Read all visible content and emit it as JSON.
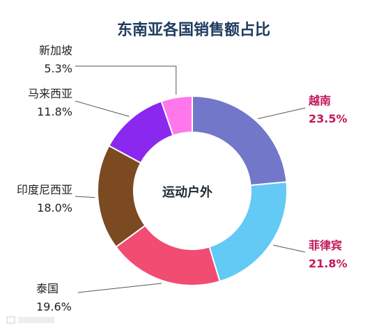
{
  "chart_data": {
    "type": "pie",
    "variant": "donut",
    "title": "东南亚各国销售额占比",
    "center_label": "运动户外",
    "slices": [
      {
        "name": "越南",
        "value": 23.5,
        "label": "23.5%",
        "color": "#7277c9",
        "highlight": true
      },
      {
        "name": "菲律宾",
        "value": 21.8,
        "label": "21.8%",
        "color": "#63c9f5",
        "highlight": true
      },
      {
        "name": "泰国",
        "value": 19.6,
        "label": "19.6%",
        "color": "#f14c72",
        "highlight": false
      },
      {
        "name": "印度尼西亚",
        "value": 18.0,
        "label": "18.0%",
        "color": "#7c4a21",
        "highlight": false
      },
      {
        "name": "马来西亚",
        "value": 11.8,
        "label": "11.8%",
        "color": "#8a28ef",
        "highlight": false
      },
      {
        "name": "新加坡",
        "value": 5.3,
        "label": "5.3%",
        "color": "#ff77ec",
        "highlight": false
      }
    ]
  }
}
